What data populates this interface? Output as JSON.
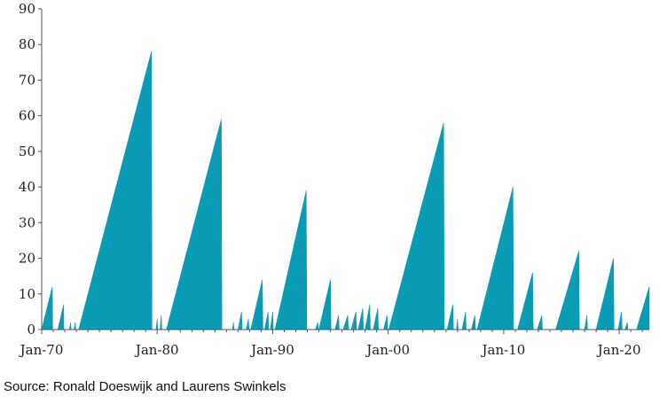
{
  "chart_data": {
    "type": "area",
    "title": "",
    "xlabel": "",
    "ylabel": "",
    "ylim": [
      0,
      90
    ],
    "xlim": [
      1970,
      2022.6
    ],
    "yticks": [
      0,
      10,
      20,
      30,
      40,
      50,
      60,
      70,
      80,
      90
    ],
    "xtick_labels": [
      "Jan-70",
      "Jan-80",
      "Jan-90",
      "Jan-00",
      "Jan-10",
      "Jan-20"
    ],
    "xtick_values": [
      1970,
      1980,
      1990,
      2000,
      2010,
      2020
    ],
    "grid": false,
    "legend": "none",
    "color": "#0a9bb5",
    "series": [
      {
        "values_note_points_as_year_value_pairs": false,
        "points": [
          [
            1970.0,
            0
          ],
          [
            1970.92,
            12
          ],
          [
            1970.95,
            0
          ],
          [
            1971.4,
            0
          ],
          [
            1971.9,
            7
          ],
          [
            1971.92,
            0
          ],
          [
            1972.4,
            0
          ],
          [
            1972.5,
            2
          ],
          [
            1972.55,
            0
          ],
          [
            1972.8,
            0
          ],
          [
            1972.9,
            2
          ],
          [
            1972.95,
            0
          ],
          [
            1973.2,
            0
          ],
          [
            1979.5,
            78
          ],
          [
            1979.55,
            0
          ],
          [
            1979.9,
            0
          ],
          [
            1980.0,
            3
          ],
          [
            1980.05,
            0
          ],
          [
            1980.25,
            0
          ],
          [
            1980.35,
            4
          ],
          [
            1980.4,
            0
          ],
          [
            1980.8,
            0
          ],
          [
            1985.55,
            59
          ],
          [
            1985.6,
            0
          ],
          [
            1986.5,
            0
          ],
          [
            1986.6,
            2
          ],
          [
            1986.65,
            0
          ],
          [
            1987.0,
            0
          ],
          [
            1987.3,
            5
          ],
          [
            1987.35,
            0
          ],
          [
            1987.7,
            0
          ],
          [
            1987.9,
            3
          ],
          [
            1987.95,
            0
          ],
          [
            1988.1,
            0
          ],
          [
            1989.1,
            14
          ],
          [
            1989.15,
            0
          ],
          [
            1989.3,
            0
          ],
          [
            1989.6,
            5
          ],
          [
            1989.65,
            0
          ],
          [
            1989.8,
            0
          ],
          [
            1990.0,
            5
          ],
          [
            1990.05,
            0
          ],
          [
            1990.2,
            0
          ],
          [
            1992.9,
            39
          ],
          [
            1992.95,
            0
          ],
          [
            1993.7,
            0
          ],
          [
            1993.9,
            2
          ],
          [
            1993.95,
            0
          ],
          [
            1994.0,
            0
          ],
          [
            1995.0,
            14
          ],
          [
            1995.05,
            0
          ],
          [
            1995.4,
            0
          ],
          [
            1995.7,
            4
          ],
          [
            1995.75,
            0
          ],
          [
            1996.1,
            0
          ],
          [
            1996.5,
            4
          ],
          [
            1996.55,
            0
          ],
          [
            1996.8,
            0
          ],
          [
            1997.2,
            5
          ],
          [
            1997.25,
            0
          ],
          [
            1997.4,
            0
          ],
          [
            1997.8,
            6
          ],
          [
            1997.85,
            0
          ],
          [
            1998.0,
            0
          ],
          [
            1998.4,
            7
          ],
          [
            1998.45,
            0
          ],
          [
            1998.7,
            0
          ],
          [
            1999.1,
            6
          ],
          [
            1999.15,
            0
          ],
          [
            1999.6,
            0
          ],
          [
            1999.9,
            4
          ],
          [
            1999.95,
            0
          ],
          [
            2000.05,
            0
          ],
          [
            2004.8,
            58
          ],
          [
            2004.85,
            0
          ],
          [
            2005.1,
            0
          ],
          [
            2005.6,
            7
          ],
          [
            2005.65,
            0
          ],
          [
            2005.9,
            0
          ],
          [
            2006.0,
            3
          ],
          [
            2006.05,
            0
          ],
          [
            2006.4,
            0
          ],
          [
            2006.7,
            5
          ],
          [
            2006.75,
            0
          ],
          [
            2007.2,
            0
          ],
          [
            2007.5,
            4
          ],
          [
            2007.55,
            0
          ],
          [
            2007.7,
            0
          ],
          [
            2010.8,
            40
          ],
          [
            2010.85,
            0
          ],
          [
            2011.2,
            0
          ],
          [
            2012.5,
            16
          ],
          [
            2012.55,
            0
          ],
          [
            2012.9,
            0
          ],
          [
            2013.3,
            4
          ],
          [
            2013.35,
            0
          ],
          [
            2014.5,
            0
          ],
          [
            2016.5,
            22
          ],
          [
            2016.55,
            0
          ],
          [
            2017.0,
            0
          ],
          [
            2017.2,
            4
          ],
          [
            2017.25,
            0
          ],
          [
            2018.0,
            0
          ],
          [
            2019.5,
            20
          ],
          [
            2019.55,
            0
          ],
          [
            2019.9,
            0
          ],
          [
            2020.2,
            5
          ],
          [
            2020.25,
            0
          ],
          [
            2020.5,
            0
          ],
          [
            2020.7,
            2
          ],
          [
            2020.75,
            0
          ],
          [
            2021.5,
            0
          ],
          [
            2022.6,
            12
          ],
          [
            2022.6,
            0
          ]
        ]
      }
    ],
    "source": "Source: Ronald Doeswijk and Laurens Swinkels"
  }
}
